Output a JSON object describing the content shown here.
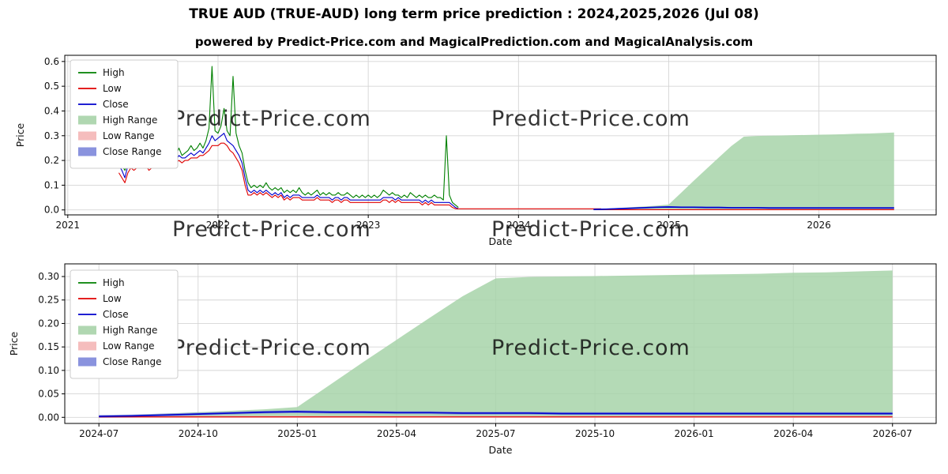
{
  "header": {
    "title": "TRUE AUD (TRUE-AUD) long term price prediction : 2024,2025,2026 (Jul 08)",
    "subtitle": "powered by Predict-Price.com and MagicalPrediction.com and MagicalAnalysis.com"
  },
  "watermark": {
    "text": "Predict-Price.com"
  },
  "colors": {
    "high": "#008000",
    "low": "#e00000",
    "close": "#0000cd",
    "high_range": "#a7d3a9",
    "low_range": "#f4b6b6",
    "close_range": "#7d87da",
    "grid": "#d5d5d5"
  },
  "chart_data": [
    {
      "type": "line",
      "title": "",
      "xlabel": "Date",
      "ylabel": "Price",
      "xlim": [
        2020.98,
        2026.78
      ],
      "ylim": [
        -0.02,
        0.625
      ],
      "xticks": {
        "values": [
          2021,
          2022,
          2023,
          2024,
          2025,
          2026
        ],
        "labels": [
          "2021",
          "2022",
          "2023",
          "2024",
          "2025",
          "2026"
        ]
      },
      "yticks": {
        "values": [
          0.0,
          0.1,
          0.2,
          0.3,
          0.4,
          0.5,
          0.6
        ],
        "labels": [
          "0.0",
          "0.1",
          "0.2",
          "0.3",
          "0.4",
          "0.5",
          "0.6"
        ]
      },
      "legend_position": "upper-left",
      "legend": [
        {
          "label": "High",
          "swatch": "line",
          "color": "#008000"
        },
        {
          "label": "Low",
          "swatch": "line",
          "color": "#e00000"
        },
        {
          "label": "Close",
          "swatch": "line",
          "color": "#0000cd"
        },
        {
          "label": "High Range",
          "swatch": "patch",
          "color": "#a7d3a9"
        },
        {
          "label": "Low Range",
          "swatch": "patch",
          "color": "#f4b6b6"
        },
        {
          "label": "Close Range",
          "swatch": "patch",
          "color": "#7d87da"
        }
      ],
      "historical": {
        "x0": 2021.34,
        "dx": 0.02,
        "high": [
          0.21,
          0.18,
          0.16,
          0.19,
          0.2,
          0.19,
          0.21,
          0.2,
          0.2,
          0.22,
          0.19,
          0.21,
          0.25,
          0.21,
          0.2,
          0.22,
          0.21,
          0.23,
          0.21,
          0.22,
          0.25,
          0.22,
          0.23,
          0.24,
          0.26,
          0.24,
          0.25,
          0.27,
          0.25,
          0.28,
          0.33,
          0.58,
          0.32,
          0.31,
          0.34,
          0.41,
          0.32,
          0.3,
          0.54,
          0.31,
          0.26,
          0.23,
          0.16,
          0.11,
          0.09,
          0.1,
          0.09,
          0.1,
          0.09,
          0.11,
          0.09,
          0.08,
          0.09,
          0.08,
          0.09,
          0.07,
          0.08,
          0.07,
          0.08,
          0.07,
          0.09,
          0.07,
          0.06,
          0.07,
          0.06,
          0.07,
          0.08,
          0.06,
          0.07,
          0.06,
          0.07,
          0.06,
          0.06,
          0.07,
          0.06,
          0.06,
          0.07,
          0.06,
          0.05,
          0.06,
          0.05,
          0.06,
          0.05,
          0.06,
          0.05,
          0.06,
          0.05,
          0.06,
          0.08,
          0.07,
          0.06,
          0.07,
          0.06,
          0.06,
          0.05,
          0.06,
          0.05,
          0.07,
          0.06,
          0.05,
          0.06,
          0.05,
          0.06,
          0.05,
          0.05,
          0.06,
          0.05,
          0.05,
          0.04,
          0.3,
          0.06,
          0.03,
          0.02,
          0.01
        ],
        "low": [
          0.15,
          0.13,
          0.11,
          0.15,
          0.17,
          0.16,
          0.17,
          0.17,
          0.17,
          0.18,
          0.16,
          0.17,
          0.18,
          0.18,
          0.17,
          0.18,
          0.18,
          0.19,
          0.18,
          0.19,
          0.2,
          0.19,
          0.2,
          0.2,
          0.21,
          0.21,
          0.21,
          0.22,
          0.22,
          0.23,
          0.24,
          0.26,
          0.26,
          0.26,
          0.27,
          0.27,
          0.26,
          0.24,
          0.23,
          0.21,
          0.19,
          0.16,
          0.1,
          0.06,
          0.06,
          0.07,
          0.06,
          0.07,
          0.06,
          0.07,
          0.06,
          0.05,
          0.06,
          0.05,
          0.06,
          0.04,
          0.05,
          0.04,
          0.05,
          0.05,
          0.05,
          0.04,
          0.04,
          0.04,
          0.04,
          0.04,
          0.05,
          0.04,
          0.04,
          0.04,
          0.04,
          0.03,
          0.04,
          0.04,
          0.03,
          0.04,
          0.04,
          0.03,
          0.03,
          0.03,
          0.03,
          0.03,
          0.03,
          0.03,
          0.03,
          0.03,
          0.03,
          0.03,
          0.04,
          0.04,
          0.03,
          0.04,
          0.03,
          0.04,
          0.03,
          0.03,
          0.03,
          0.03,
          0.03,
          0.03,
          0.03,
          0.02,
          0.03,
          0.02,
          0.03,
          0.02,
          0.02,
          0.02,
          0.02,
          0.02,
          0.02,
          0.01,
          0.005,
          0.004
        ],
        "close": [
          0.18,
          0.16,
          0.13,
          0.18,
          0.19,
          0.17,
          0.19,
          0.18,
          0.19,
          0.2,
          0.18,
          0.19,
          0.2,
          0.19,
          0.18,
          0.2,
          0.19,
          0.21,
          0.19,
          0.2,
          0.22,
          0.21,
          0.21,
          0.22,
          0.23,
          0.22,
          0.23,
          0.24,
          0.23,
          0.25,
          0.27,
          0.3,
          0.28,
          0.29,
          0.3,
          0.31,
          0.28,
          0.27,
          0.26,
          0.24,
          0.22,
          0.19,
          0.13,
          0.08,
          0.07,
          0.08,
          0.07,
          0.08,
          0.07,
          0.08,
          0.07,
          0.06,
          0.07,
          0.06,
          0.07,
          0.05,
          0.06,
          0.05,
          0.06,
          0.06,
          0.06,
          0.05,
          0.05,
          0.05,
          0.05,
          0.05,
          0.06,
          0.05,
          0.05,
          0.05,
          0.05,
          0.04,
          0.05,
          0.05,
          0.04,
          0.05,
          0.05,
          0.04,
          0.04,
          0.04,
          0.04,
          0.04,
          0.04,
          0.04,
          0.04,
          0.04,
          0.04,
          0.04,
          0.05,
          0.05,
          0.05,
          0.05,
          0.04,
          0.05,
          0.04,
          0.04,
          0.04,
          0.04,
          0.04,
          0.04,
          0.04,
          0.03,
          0.04,
          0.03,
          0.04,
          0.03,
          0.03,
          0.03,
          0.03,
          0.03,
          0.03,
          0.02,
          0.01,
          0.005
        ]
      },
      "flat_tail": {
        "x": [
          2023.6,
          2024.55
        ],
        "value": 0.0045
      },
      "forecast": {
        "x0": 2024.5,
        "dx": 0.0833333,
        "high_top": [
          0.003,
          0.005,
          0.008,
          0.011,
          0.014,
          0.017,
          0.022,
          0.07,
          0.118,
          0.165,
          0.212,
          0.258,
          0.296,
          0.299,
          0.3,
          0.301,
          0.302,
          0.303,
          0.304,
          0.305,
          0.306,
          0.308,
          0.309,
          0.311,
          0.313
        ],
        "close": [
          0.002,
          0.003,
          0.005,
          0.007,
          0.009,
          0.011,
          0.012,
          0.011,
          0.011,
          0.01,
          0.01,
          0.009,
          0.009,
          0.009,
          0.008,
          0.008,
          0.008,
          0.008,
          0.008,
          0.008,
          0.008,
          0.008,
          0.008,
          0.008,
          0.008
        ],
        "low": [
          0.001,
          0.001,
          0.001,
          0.001,
          0.001,
          0.001,
          0.001,
          0.001,
          0.001,
          0.001,
          0.001,
          0.001,
          0.001,
          0.001,
          0.001,
          0.001,
          0.001,
          0.001,
          0.001,
          0.001,
          0.001,
          0.001,
          0.001,
          0.001,
          0.001
        ],
        "close_hw": 0.003,
        "low_hw": 0.002
      }
    },
    {
      "type": "line",
      "title": "",
      "xlabel": "Date",
      "ylabel": "Price",
      "xlim": [
        2024.414,
        2026.61
      ],
      "ylim": [
        -0.013,
        0.327
      ],
      "xticks": {
        "values": [
          2024.5,
          2024.75,
          2025.0,
          2025.25,
          2025.5,
          2025.75,
          2026.0,
          2026.25,
          2026.5
        ],
        "labels": [
          "2024-07",
          "2024-10",
          "2025-01",
          "2025-04",
          "2025-07",
          "2025-10",
          "2026-01",
          "2026-04",
          "2026-07"
        ]
      },
      "yticks": {
        "values": [
          0.0,
          0.05,
          0.1,
          0.15,
          0.2,
          0.25,
          0.3
        ],
        "labels": [
          "0.00",
          "0.05",
          "0.10",
          "0.15",
          "0.20",
          "0.25",
          "0.30"
        ]
      },
      "legend_position": "upper-left",
      "legend": [
        {
          "label": "High",
          "swatch": "line",
          "color": "#008000"
        },
        {
          "label": "Low",
          "swatch": "line",
          "color": "#e00000"
        },
        {
          "label": "Close",
          "swatch": "line",
          "color": "#0000cd"
        },
        {
          "label": "High Range",
          "swatch": "patch",
          "color": "#a7d3a9"
        },
        {
          "label": "Low Range",
          "swatch": "patch",
          "color": "#f4b6b6"
        },
        {
          "label": "Close Range",
          "swatch": "patch",
          "color": "#7d87da"
        }
      ],
      "forecast": {
        "x0": 2024.5,
        "dx": 0.0833333,
        "high_top": [
          0.003,
          0.005,
          0.008,
          0.011,
          0.014,
          0.017,
          0.022,
          0.07,
          0.118,
          0.165,
          0.212,
          0.258,
          0.296,
          0.299,
          0.3,
          0.301,
          0.302,
          0.303,
          0.304,
          0.305,
          0.306,
          0.308,
          0.309,
          0.311,
          0.313
        ],
        "close": [
          0.002,
          0.003,
          0.005,
          0.007,
          0.009,
          0.011,
          0.012,
          0.011,
          0.011,
          0.01,
          0.01,
          0.009,
          0.009,
          0.009,
          0.008,
          0.008,
          0.008,
          0.008,
          0.008,
          0.008,
          0.008,
          0.008,
          0.008,
          0.008,
          0.008
        ],
        "low": [
          0.001,
          0.001,
          0.001,
          0.001,
          0.001,
          0.001,
          0.001,
          0.001,
          0.001,
          0.001,
          0.001,
          0.001,
          0.001,
          0.001,
          0.001,
          0.001,
          0.001,
          0.001,
          0.001,
          0.001,
          0.001,
          0.001,
          0.001,
          0.001,
          0.001
        ],
        "close_hw": 0.003,
        "low_hw": 0.002
      }
    }
  ]
}
